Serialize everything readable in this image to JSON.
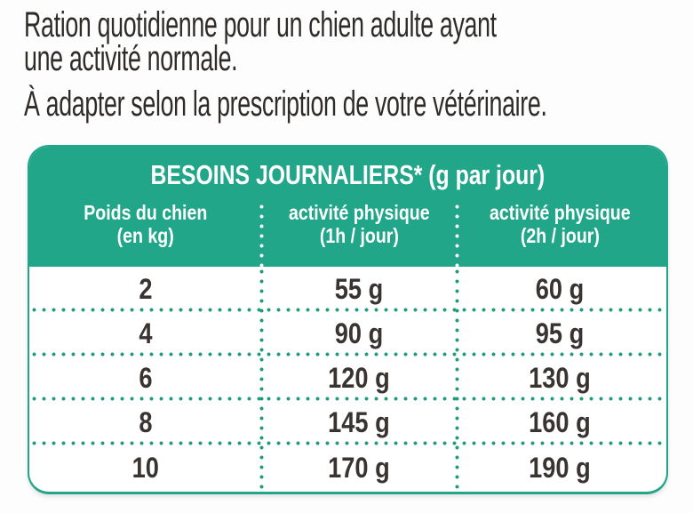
{
  "intro": {
    "line1": "Ration quotidienne pour un chien adulte ayant",
    "line2": "une activité normale.",
    "line3": "À adapter selon la prescription de votre vétérinaire."
  },
  "table": {
    "title": "BESOINS JOURNALIERS* (g par jour)",
    "columns": [
      {
        "line1": "Poids du chien",
        "line2": "(en kg)"
      },
      {
        "line1": "activité physique",
        "line2": "(1h / jour)"
      },
      {
        "line1": "activité physique",
        "line2": "(2h / jour)"
      }
    ],
    "rows": [
      {
        "weight_kg": "2",
        "ration_1h": "55 g",
        "ration_2h": "60 g"
      },
      {
        "weight_kg": "4",
        "ration_1h": "90 g",
        "ration_2h": "95 g"
      },
      {
        "weight_kg": "6",
        "ration_1h": "120 g",
        "ration_2h": "130 g"
      },
      {
        "weight_kg": "8",
        "ration_1h": "145 g",
        "ration_2h": "160 g"
      },
      {
        "weight_kg": "10",
        "ration_1h": "170 g",
        "ration_2h": "190 g"
      }
    ],
    "colors": {
      "header_bg": "#22a689",
      "separator_dots": "#209b7e",
      "header_text": "#ffffff",
      "body_text": "#393432"
    }
  }
}
